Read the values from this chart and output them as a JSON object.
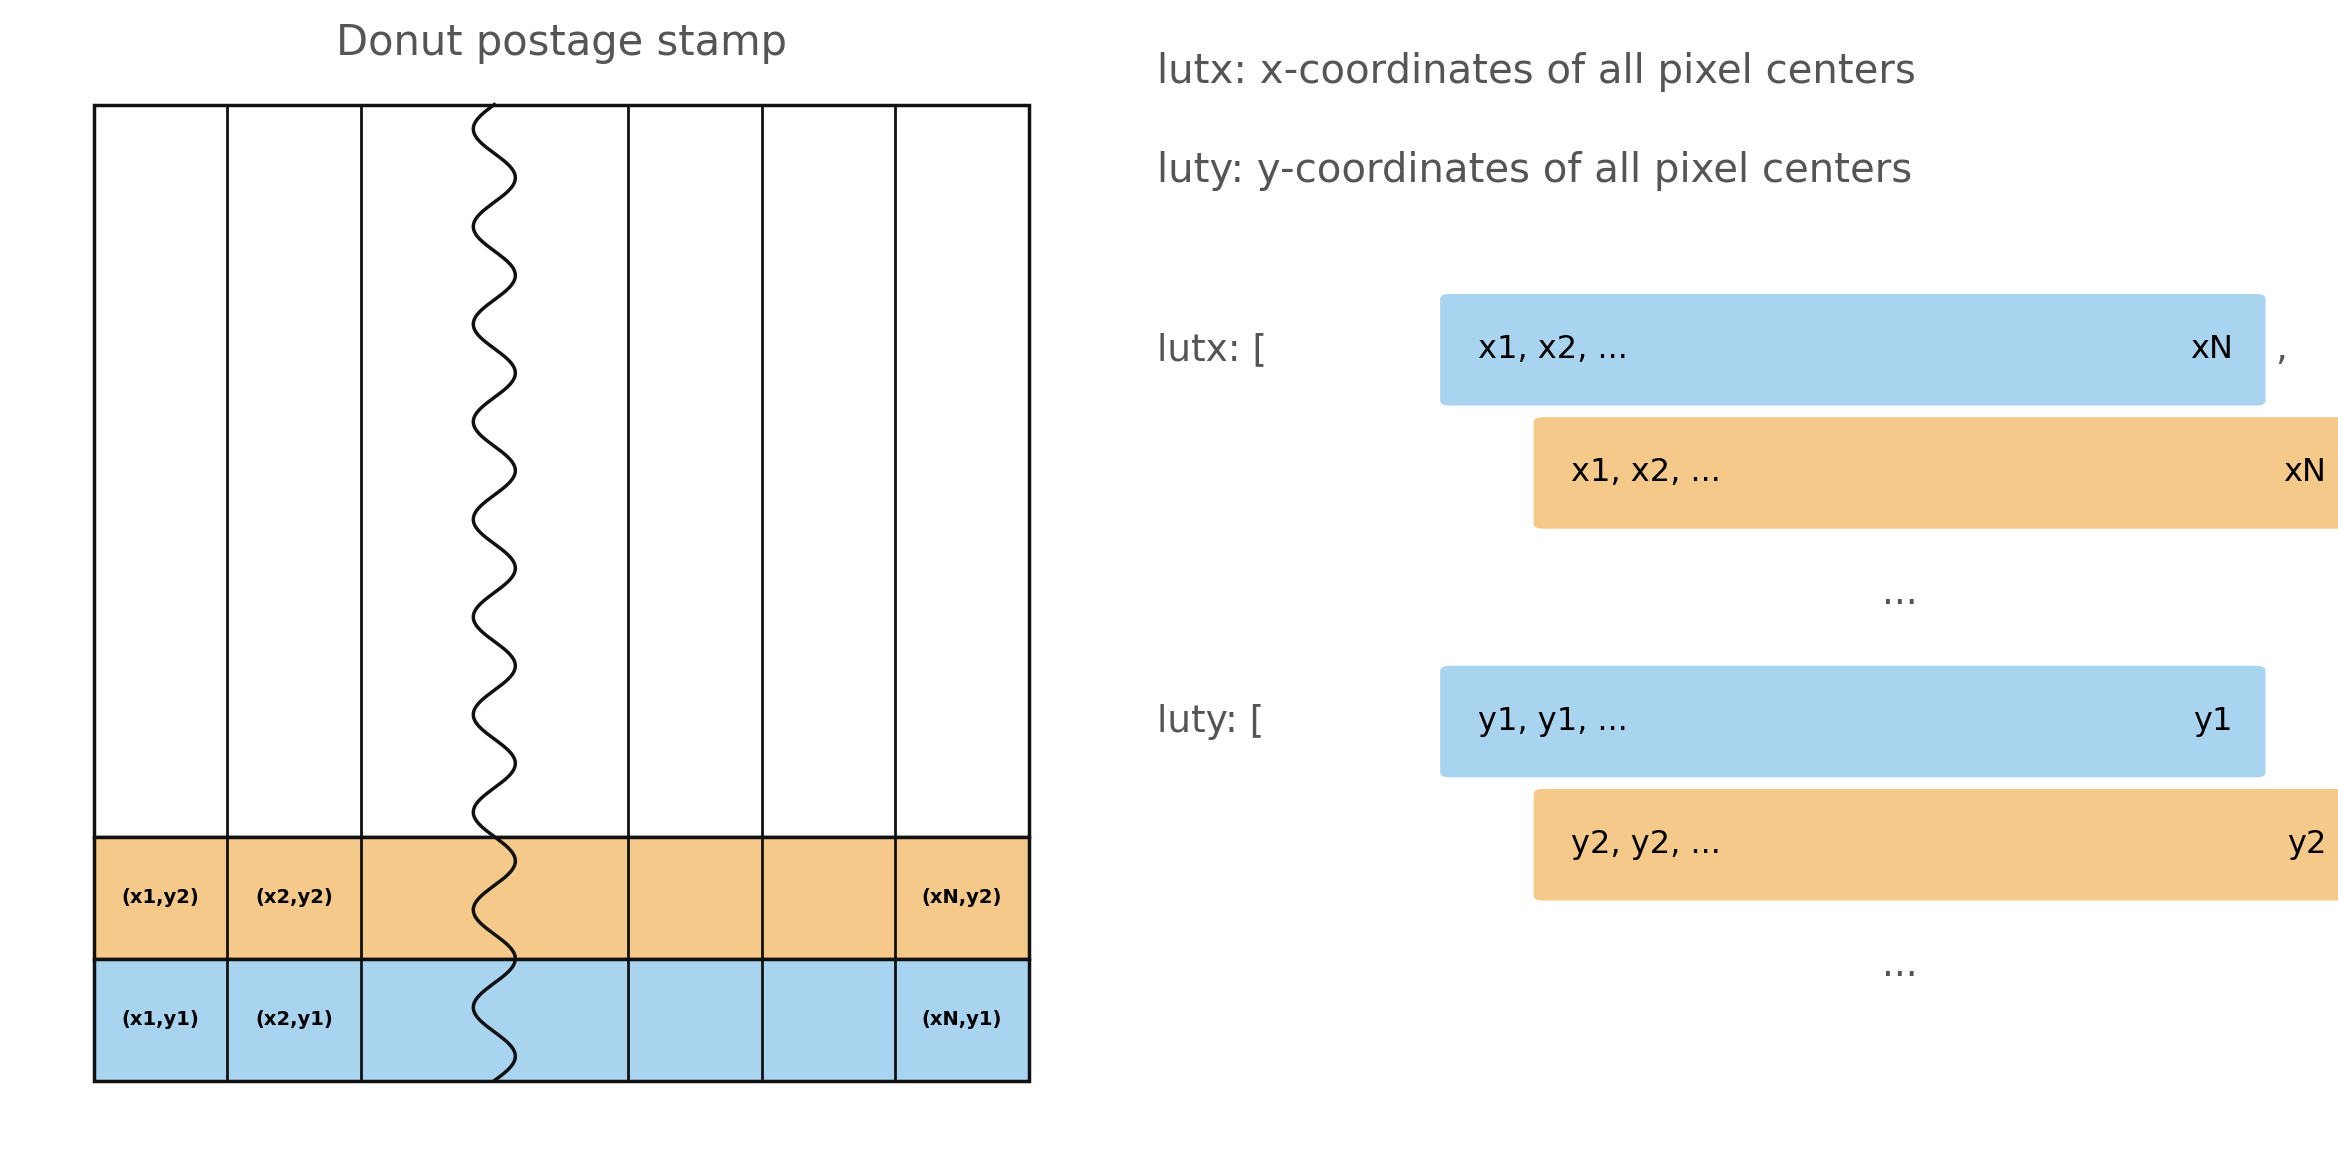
{
  "title_left": "Donut postage stamp",
  "title_right_line1": "lutx: x-coordinates of all pixel centers",
  "title_right_line2": "luty: y-coordinates of all pixel centers",
  "blue_color": "#a8d4f0",
  "orange_color": "#f5c98a",
  "text_color": "#555555",
  "grid_line_color": "#111111",
  "n_cols": 7,
  "wavy_col": 3
}
